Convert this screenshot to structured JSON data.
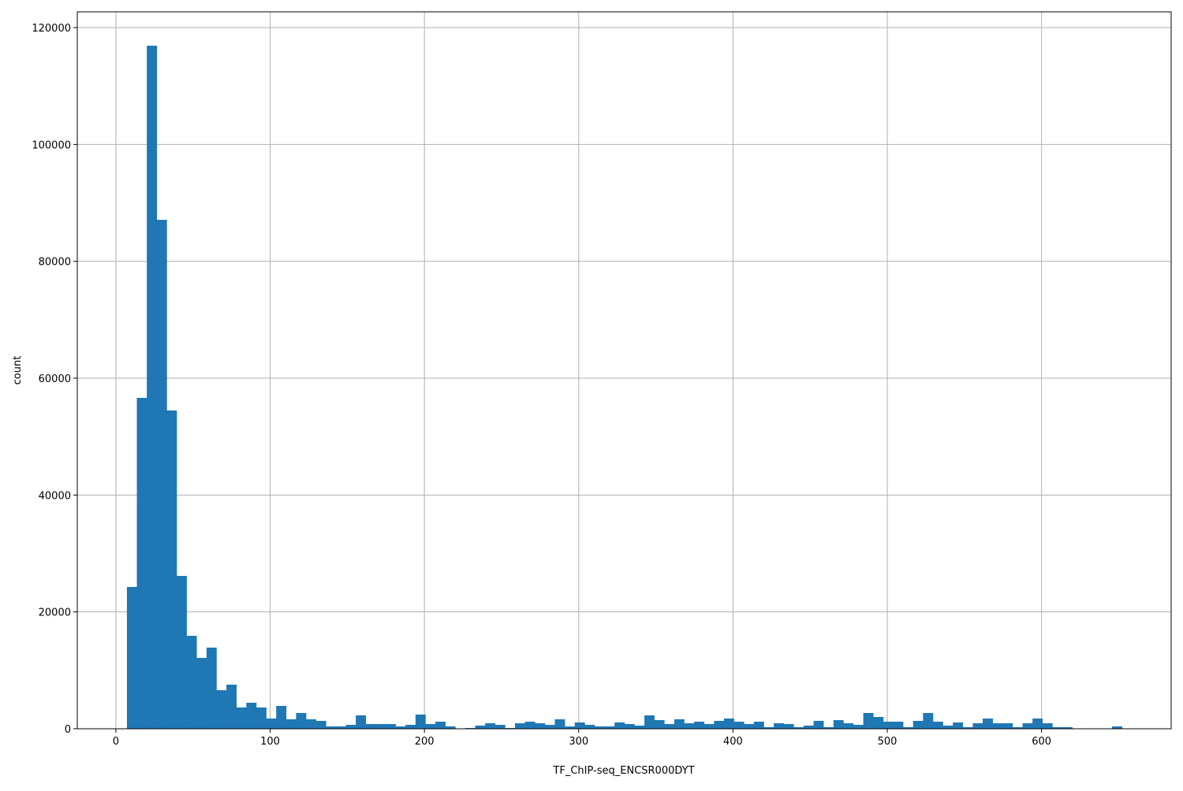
{
  "chart_data": {
    "type": "bar",
    "subtype": "histogram",
    "xlabel": "TF_ChIP-seq_ENCSR000DYT",
    "ylabel": "count",
    "xlim": [
      -25,
      684
    ],
    "ylim": [
      0,
      122700
    ],
    "xticks": [
      0,
      100,
      200,
      300,
      400,
      500,
      600
    ],
    "yticks": [
      0,
      20000,
      40000,
      60000,
      80000,
      100000,
      120000
    ],
    "grid": true,
    "bar_color": "#1f77b4",
    "bin_start": 7.16,
    "bin_width": 6.45,
    "counts": [
      24270,
      56630,
      116900,
      87100,
      54470,
      26160,
      15910,
      12130,
      13890,
      6600,
      7550,
      3640,
      4450,
      3640,
      1750,
      3910,
      1620,
      2700,
      1620,
      1350,
      400,
      400,
      670,
      2290,
      810,
      810,
      810,
      400,
      670,
      2430,
      810,
      1210,
      400,
      0,
      130,
      540,
      940,
      670,
      130,
      940,
      1210,
      940,
      670,
      1620,
      400,
      1080,
      670,
      400,
      400,
      1080,
      810,
      540,
      2290,
      1480,
      810,
      1620,
      940,
      1210,
      810,
      1350,
      1750,
      1210,
      810,
      1210,
      270,
      940,
      810,
      270,
      540,
      1350,
      270,
      1480,
      940,
      670,
      2700,
      2020,
      1210,
      1210,
      270,
      1350,
      2700,
      1210,
      540,
      1080,
      270,
      940,
      1750,
      940,
      940,
      270,
      940,
      1750,
      940,
      270,
      270,
      0,
      0,
      0,
      0,
      400
    ]
  }
}
